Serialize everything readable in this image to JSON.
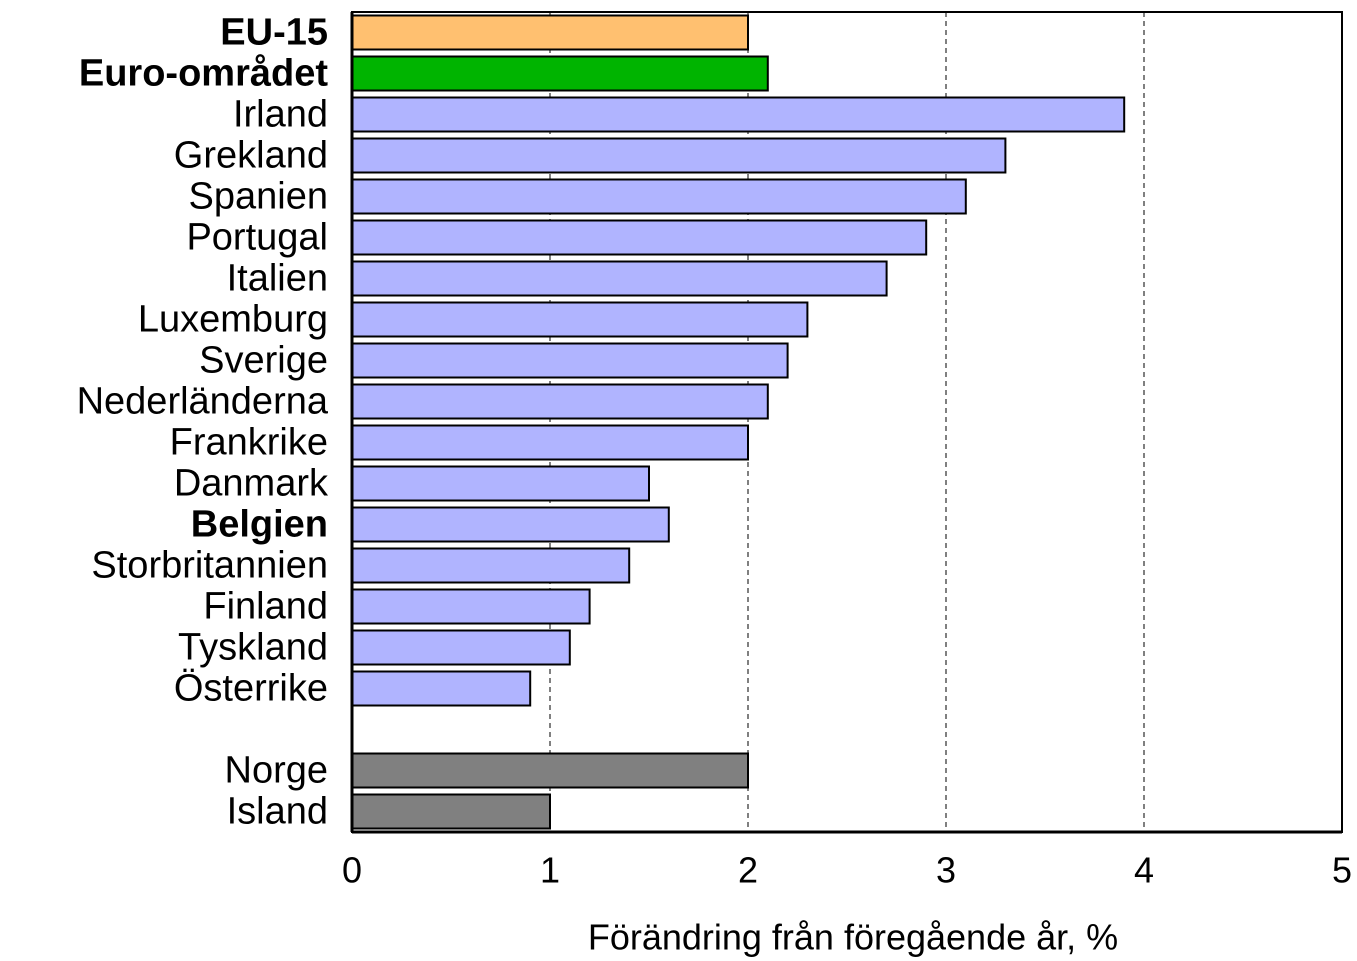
{
  "chart_data": {
    "type": "bar",
    "orientation": "horizontal",
    "x_label": "Förändring från föregående år, %",
    "categories": [
      "EU-15",
      "Euro-området",
      "Irland",
      "Grekland",
      "Spanien",
      "Portugal",
      "Italien",
      "Luxemburg",
      "Sverige",
      "Nederländerna",
      "Frankrike",
      "Danmark",
      "Belgien",
      "Storbritannien",
      "Finland",
      "Tyskland",
      "Österrike",
      null,
      "Norge",
      "Island"
    ],
    "values": [
      2.0,
      2.1,
      3.9,
      3.3,
      3.1,
      2.9,
      2.7,
      2.3,
      2.2,
      2.1,
      2.0,
      1.5,
      1.6,
      1.4,
      1.2,
      1.1,
      0.9,
      null,
      2.0,
      1.0
    ],
    "colors": [
      "#ffc070",
      "#00b400",
      "#b0b4ff",
      "#b0b4ff",
      "#b0b4ff",
      "#b0b4ff",
      "#b0b4ff",
      "#b0b4ff",
      "#b0b4ff",
      "#b0b4ff",
      "#b0b4ff",
      "#b0b4ff",
      "#b0b4ff",
      "#b0b4ff",
      "#b0b4ff",
      "#b0b4ff",
      "#b0b4ff",
      null,
      "#808080",
      "#808080"
    ],
    "bold": [
      true,
      true,
      false,
      false,
      false,
      false,
      false,
      false,
      false,
      false,
      false,
      false,
      true,
      false,
      false,
      false,
      false,
      false,
      false,
      false
    ],
    "xlim": [
      0,
      5
    ],
    "xticks": [
      0,
      1,
      2,
      3,
      4,
      5
    ],
    "grid": true
  }
}
